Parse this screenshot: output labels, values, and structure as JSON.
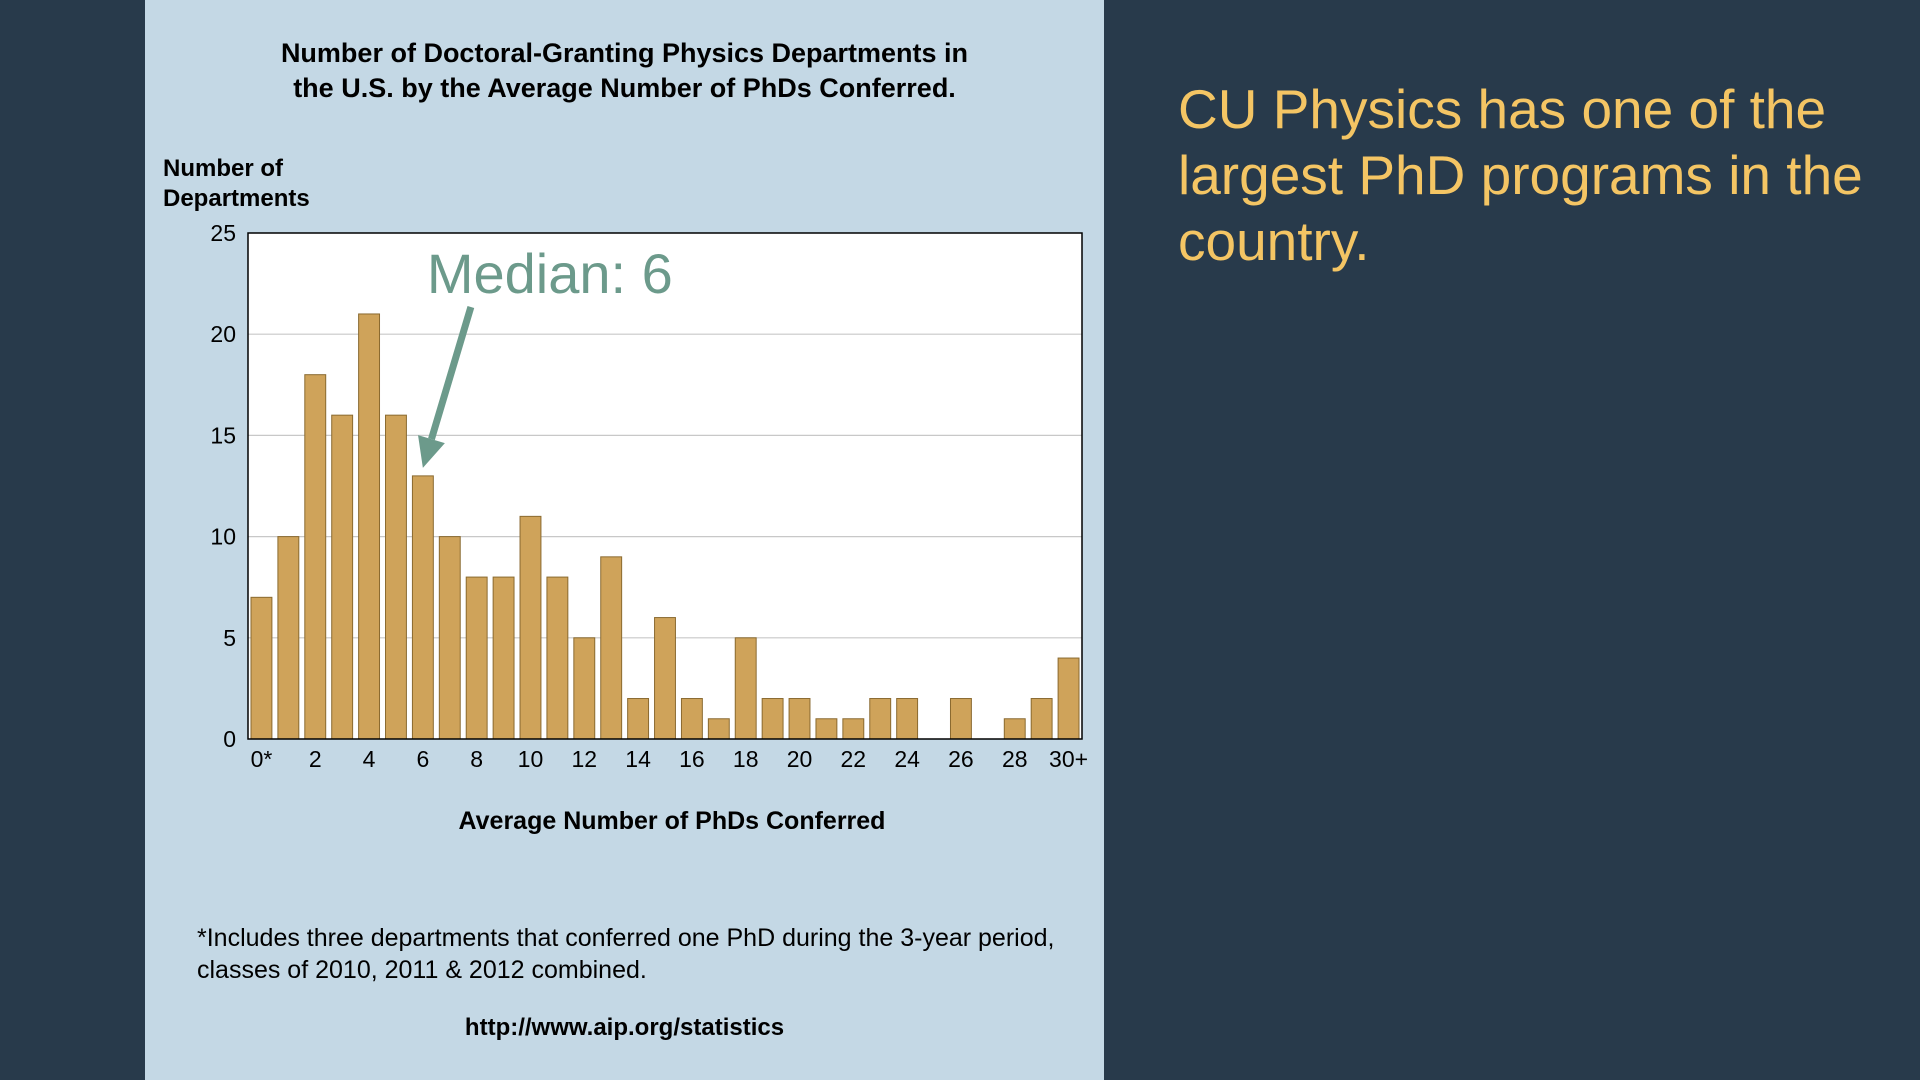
{
  "headline": "CU Physics has one of the largest PhD programs in the country.",
  "colors": {
    "background": "#283a4b",
    "panel": "#c4d8e5",
    "bar": "#cfa35a",
    "bar_outline": "#8a6a30",
    "annotation": "#6c9a8b",
    "headline": "#f4c564"
  },
  "chart_data": {
    "type": "bar",
    "title": "Number of Doctoral-Granting Physics Departments in\nthe U.S. by the Average Number of PhDs Conferred.",
    "ylabel": "Number of\nDepartments",
    "xlabel": "Average Number of PhDs Conferred",
    "ylim": [
      0,
      25
    ],
    "yticks": [
      0,
      5,
      10,
      15,
      20,
      25
    ],
    "grid": "horizontal",
    "categories": [
      "0*",
      "1",
      "2",
      "3",
      "4",
      "5",
      "6",
      "7",
      "8",
      "9",
      "10",
      "11",
      "12",
      "13",
      "14",
      "15",
      "16",
      "17",
      "18",
      "19",
      "20",
      "21",
      "22",
      "23",
      "24",
      "25",
      "26",
      "27",
      "28",
      "29",
      "30+"
    ],
    "xtick_labels": [
      "0*",
      "2",
      "4",
      "6",
      "8",
      "10",
      "12",
      "14",
      "16",
      "18",
      "20",
      "22",
      "24",
      "26",
      "28",
      "30+"
    ],
    "values": [
      7,
      10,
      18,
      16,
      21,
      16,
      13,
      10,
      8,
      8,
      11,
      8,
      5,
      9,
      2,
      6,
      2,
      1,
      5,
      2,
      2,
      1,
      1,
      2,
      2,
      0,
      2,
      0,
      1,
      2,
      4
    ],
    "annotation": {
      "text": "Median: 6",
      "target_category": "6"
    },
    "footnote": "*Includes three departments that conferred one PhD during the 3-year period, classes of 2010, 2011 & 2012 combined.",
    "source": "http://www.aip.org/statistics"
  }
}
